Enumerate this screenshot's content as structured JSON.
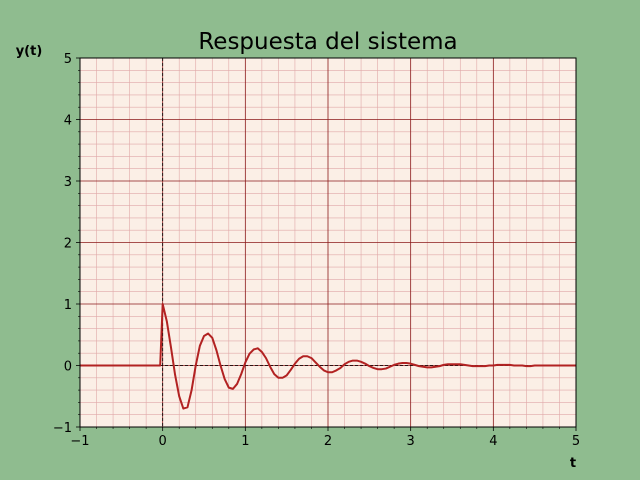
{
  "chart_data": {
    "type": "line",
    "title": "Respuesta del sistema",
    "xlabel": "t",
    "ylabel": "y(t)",
    "xlim": [
      -1,
      5
    ],
    "ylim": [
      -1,
      5
    ],
    "xticks": [
      "−1",
      "0",
      "1",
      "2",
      "3",
      "4",
      "5"
    ],
    "yticks": [
      "−1",
      "0",
      "1",
      "2",
      "3",
      "4",
      "5"
    ],
    "grid": true,
    "colors": {
      "figure_background": "#8fbc8f",
      "plot_background": "#fbefe6",
      "major_grid": "#8b1a1a",
      "minor_grid": "#e0a8a8",
      "line": "#b22222",
      "reference_lines": "#000000"
    },
    "series": [
      {
        "x": [
          -1,
          -0.05,
          -0.03,
          0,
          0.05,
          0.1,
          0.15,
          0.2,
          0.25,
          0.3,
          0.35,
          0.4,
          0.45,
          0.5,
          0.55,
          0.6,
          0.65,
          0.7,
          0.75,
          0.8,
          0.85,
          0.9,
          0.95,
          1.0,
          1.05,
          1.1,
          1.15,
          1.2,
          1.25,
          1.3,
          1.35,
          1.4,
          1.45,
          1.5,
          1.55,
          1.6,
          1.65,
          1.7,
          1.75,
          1.8,
          1.85,
          1.9,
          1.95,
          2.0,
          2.05,
          2.1,
          2.15,
          2.2,
          2.25,
          2.3,
          2.35,
          2.4,
          2.45,
          2.5,
          2.55,
          2.6,
          2.65,
          2.7,
          2.75,
          2.8,
          2.85,
          2.9,
          2.95,
          3.0,
          3.05,
          3.1,
          3.15,
          3.2,
          3.25,
          3.3,
          3.35,
          3.4,
          3.45,
          3.5,
          3.55,
          3.6,
          3.65,
          3.7,
          3.75,
          3.8,
          3.85,
          3.9,
          3.95,
          4.0,
          4.05,
          4.1,
          4.15,
          4.2,
          4.25,
          4.3,
          4.35,
          4.4,
          4.45,
          4.5,
          4.55,
          4.6,
          4.65,
          4.7,
          4.75,
          4.8,
          4.85,
          4.9,
          4.95,
          5.0
        ],
        "y": [
          0,
          0,
          0,
          1.0,
          0.72,
          0.3,
          -0.15,
          -0.5,
          -0.7,
          -0.68,
          -0.4,
          0.0,
          0.32,
          0.48,
          0.52,
          0.45,
          0.25,
          0.0,
          -0.22,
          -0.36,
          -0.38,
          -0.3,
          -0.14,
          0.05,
          0.19,
          0.26,
          0.28,
          0.22,
          0.12,
          -0.02,
          -0.14,
          -0.2,
          -0.2,
          -0.16,
          -0.07,
          0.03,
          0.11,
          0.15,
          0.15,
          0.12,
          0.05,
          -0.02,
          -0.08,
          -0.11,
          -0.11,
          -0.08,
          -0.04,
          0.02,
          0.06,
          0.08,
          0.08,
          0.06,
          0.03,
          -0.01,
          -0.04,
          -0.06,
          -0.06,
          -0.05,
          -0.02,
          0.01,
          0.03,
          0.04,
          0.04,
          0.03,
          0.01,
          -0.01,
          -0.02,
          -0.03,
          -0.03,
          -0.02,
          -0.01,
          0.01,
          0.02,
          0.02,
          0.02,
          0.02,
          0.01,
          0.0,
          -0.01,
          -0.01,
          -0.01,
          -0.01,
          0.0,
          0.0,
          0.01,
          0.01,
          0.01,
          0.01,
          0.0,
          0.0,
          0.0,
          -0.01,
          -0.01,
          0.0,
          0.0,
          0.0,
          0.0,
          0.0,
          0.0,
          0.0,
          0.0,
          0.0,
          0.0,
          0.0
        ]
      }
    ]
  }
}
